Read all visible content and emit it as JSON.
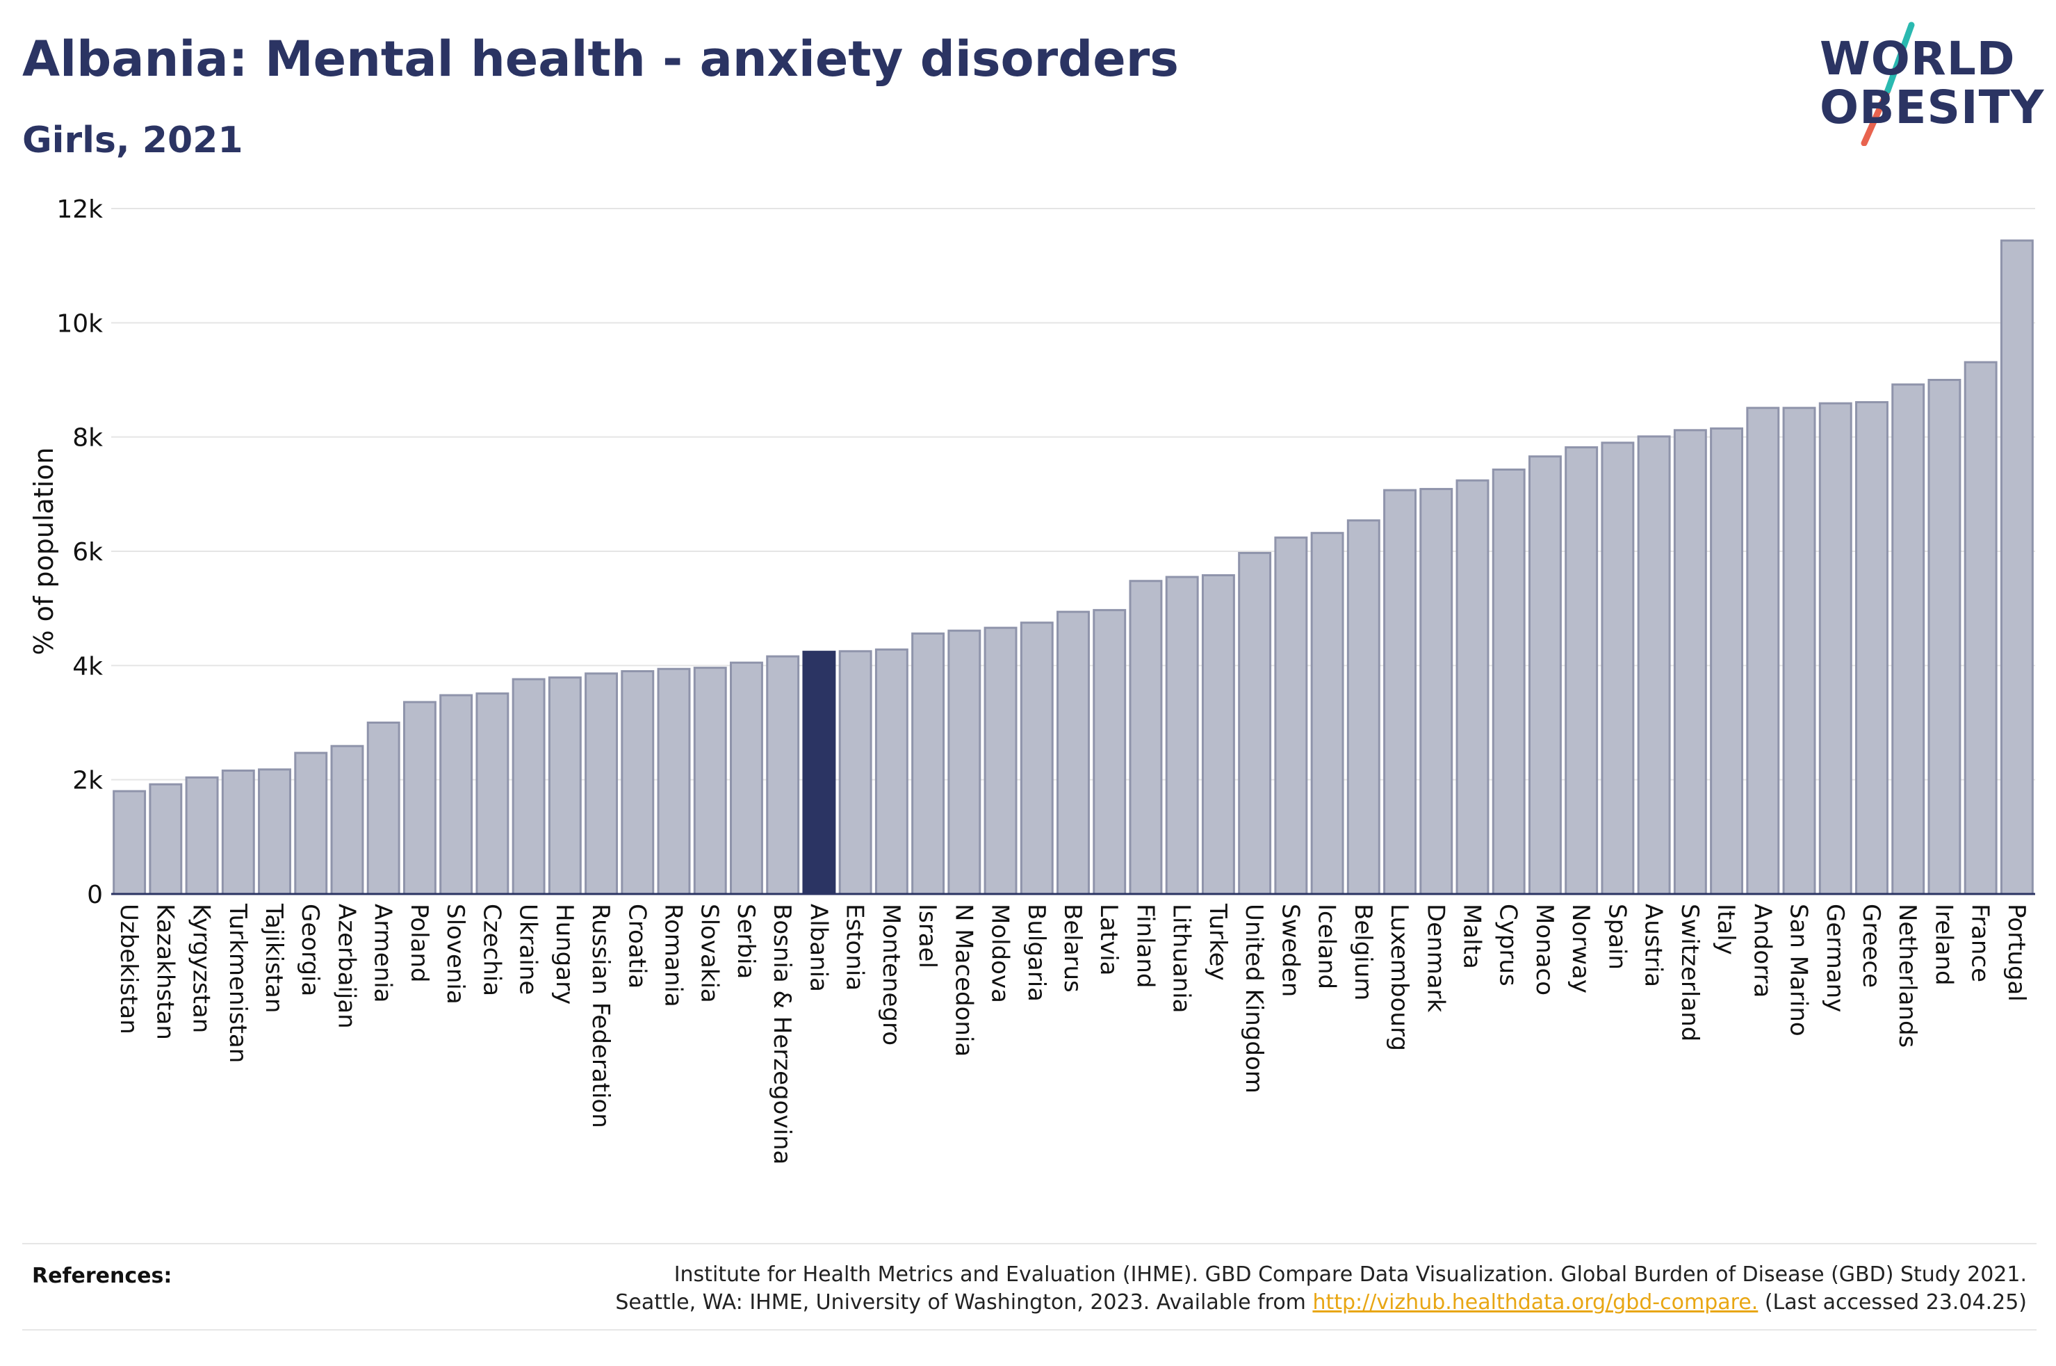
{
  "header": {
    "title": "Albania: Mental health - anxiety disorders",
    "subtitle": "Girls, 2021"
  },
  "logo": {
    "line1": "WORLD",
    "line2": "OBESITY",
    "slash_color_top": "#2ab9b0",
    "slash_color_bottom": "#e8634f"
  },
  "colors": {
    "bar_fill": "#b8bccb",
    "bar_stroke": "#8f94ab",
    "highlight_fill": "#2b3463",
    "text": "#2b3463",
    "link": "#e8a613"
  },
  "chart_data": {
    "type": "bar",
    "ylabel": "% of population",
    "ylim": [
      0,
      12000
    ],
    "yticks": [
      0,
      2000,
      4000,
      6000,
      8000,
      10000,
      12000
    ],
    "ytick_labels": [
      "0",
      "2k",
      "4k",
      "6k",
      "8k",
      "10k",
      "12k"
    ],
    "highlight": "Albania",
    "categories": [
      "Uzbekistan",
      "Kazakhstan",
      "Kyrgyzstan",
      "Turkmenistan",
      "Tajikistan",
      "Georgia",
      "Azerbaijan",
      "Armenia",
      "Poland",
      "Slovenia",
      "Czechia",
      "Ukraine",
      "Hungary",
      "Russian Federation",
      "Croatia",
      "Romania",
      "Slovakia",
      "Serbia",
      "Bosnia & Herzegovina",
      "Albania",
      "Estonia",
      "Montenegro",
      "Israel",
      "N Macedonia",
      "Moldova",
      "Bulgaria",
      "Belarus",
      "Latvia",
      "Finland",
      "Lithuania",
      "Turkey",
      "United Kingdom",
      "Sweden",
      "Iceland",
      "Belgium",
      "Luxembourg",
      "Denmark",
      "Malta",
      "Cyprus",
      "Monaco",
      "Norway",
      "Spain",
      "Austria",
      "Switzerland",
      "Italy",
      "Andorra",
      "San Marino",
      "Germany",
      "Greece",
      "Netherlands",
      "Ireland",
      "France",
      "Portugal"
    ],
    "values": [
      1800,
      1920,
      2040,
      2160,
      2180,
      2470,
      2590,
      3000,
      3360,
      3480,
      3510,
      3760,
      3790,
      3860,
      3900,
      3940,
      3960,
      4050,
      4160,
      4240,
      4250,
      4280,
      4560,
      4610,
      4660,
      4750,
      4940,
      4970,
      5480,
      5550,
      5580,
      5970,
      6240,
      6320,
      6540,
      7070,
      7090,
      7240,
      7430,
      7660,
      7820,
      7900,
      8010,
      8120,
      8150,
      8510,
      8510,
      8590,
      8610,
      8920,
      9000,
      9310,
      11440
    ]
  },
  "references": {
    "label": "References:",
    "line1": "Institute for Health Metrics and Evaluation (IHME). GBD Compare Data Visualization. Global Burden of Disease (GBD) Study 2021.",
    "line2_prefix": "Seattle, WA: IHME, University of Washington, 2023. Available from ",
    "link": "http://vizhub.healthdata.org/gbd-compare.",
    "line2_suffix": " (Last accessed 23.04.25)"
  }
}
